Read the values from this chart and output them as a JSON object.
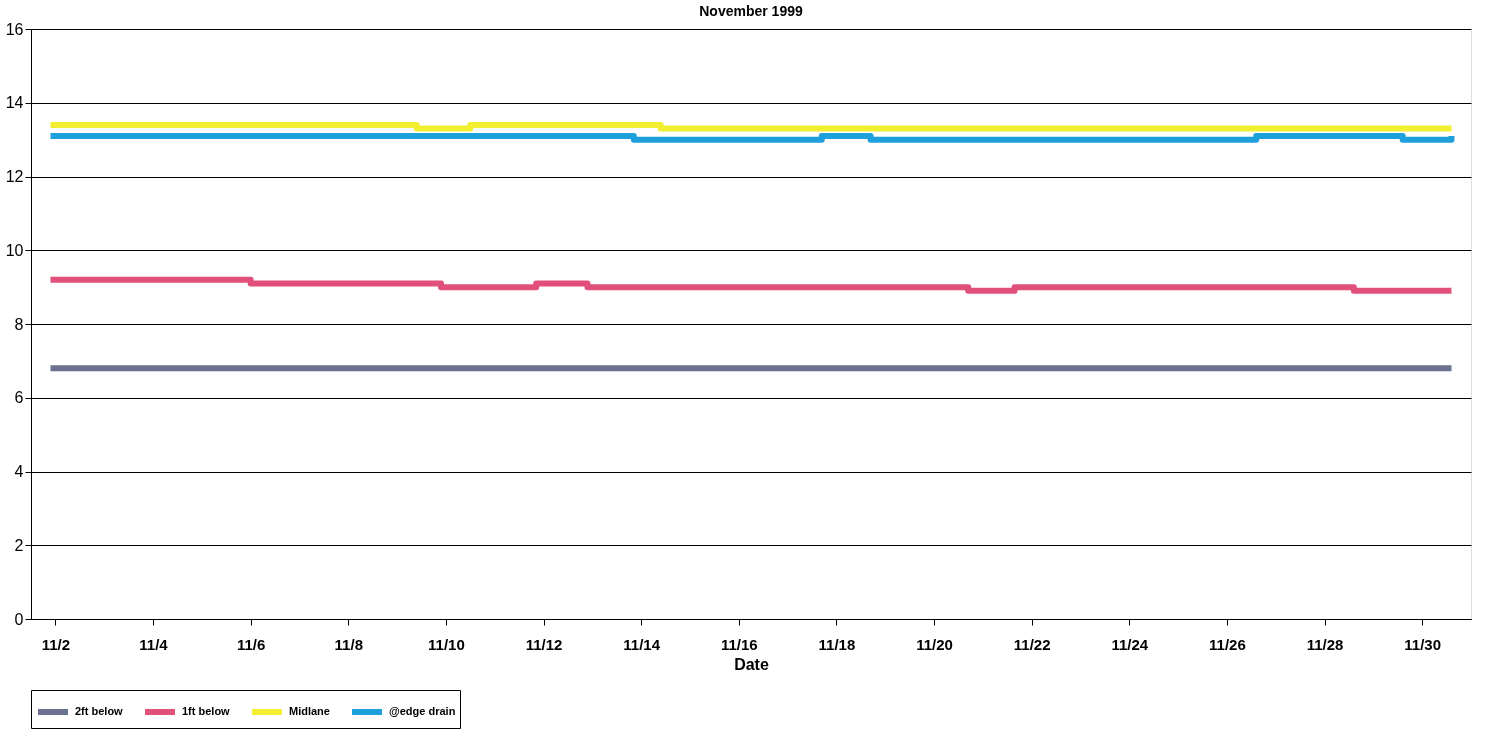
{
  "chart_data": {
    "type": "step",
    "title": "November 1999",
    "xlabel": "Date",
    "xlim": [
      "1999-11-01T12:00",
      "1999-12-01T00:00"
    ],
    "ylim": [
      0,
      16
    ],
    "yticks": [
      0,
      2,
      4,
      6,
      8,
      10,
      12,
      14,
      16
    ],
    "xticks": [
      {
        "value": "1999-11-02",
        "label": "11/2"
      },
      {
        "value": "1999-11-04",
        "label": "11/4"
      },
      {
        "value": "1999-11-06",
        "label": "11/6"
      },
      {
        "value": "1999-11-08",
        "label": "11/8"
      },
      {
        "value": "1999-11-10",
        "label": "11/10"
      },
      {
        "value": "1999-11-12",
        "label": "11/12"
      },
      {
        "value": "1999-11-14",
        "label": "11/14"
      },
      {
        "value": "1999-11-16",
        "label": "11/16"
      },
      {
        "value": "1999-11-18",
        "label": "11/18"
      },
      {
        "value": "1999-11-20",
        "label": "11/20"
      },
      {
        "value": "1999-11-22",
        "label": "11/22"
      },
      {
        "value": "1999-11-24",
        "label": "11/24"
      },
      {
        "value": "1999-11-26",
        "label": "11/26"
      },
      {
        "value": "1999-11-28",
        "label": "11/28"
      },
      {
        "value": "1999-11-30",
        "label": "11/30"
      }
    ],
    "grid": "y",
    "legend": "bottom",
    "series": [
      {
        "name": "2ft below",
        "color": "#6a7290",
        "x": [
          "1999-11-01T21:36",
          "1999-11-30T14:24"
        ],
        "values": [
          6.8,
          6.8
        ]
      },
      {
        "name": "1ft below",
        "color": "#e0507a",
        "x": [
          "1999-11-01T21:36",
          "1999-11-06T00:00",
          "1999-11-09T21:36",
          "1999-11-11T20:24",
          "1999-11-12T21:36",
          "1999-11-20T16:48",
          "1999-11-21T15:36",
          "1999-11-28T14:24",
          "1999-11-30T14:24"
        ],
        "values": [
          9.2,
          9.1,
          9.0,
          9.1,
          9.0,
          8.9,
          9.0,
          8.9,
          8.9
        ]
      },
      {
        "name": "Midlane",
        "color": "#f2ee30",
        "x": [
          "1999-11-01T21:36",
          "1999-11-09T09:36",
          "1999-11-10T12:00",
          "1999-11-14T09:36",
          "1999-11-30T14:24"
        ],
        "values": [
          13.4,
          13.3,
          13.4,
          13.3,
          13.3
        ]
      },
      {
        "name": "@edge drain",
        "color": "#1ea0dc",
        "x": [
          "1999-11-01T21:36",
          "1999-11-13T20:24",
          "1999-11-17T16:48",
          "1999-11-18T16:48",
          "1999-11-25T16:48",
          "1999-11-26T14:24",
          "1999-11-29T14:24",
          "1999-11-30T14:24"
        ],
        "values": [
          13.1,
          13.0,
          13.1,
          13.0,
          13.0,
          13.1,
          13.0,
          13.1
        ]
      }
    ]
  }
}
